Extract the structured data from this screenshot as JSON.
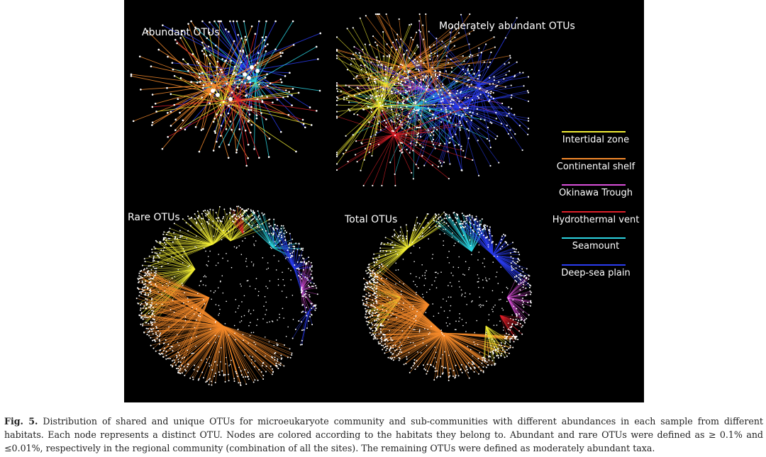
{
  "figure": {
    "panels": [
      {
        "id": "abundant",
        "title": "Abundant OTUs"
      },
      {
        "id": "moderate",
        "title": "Moderately abundant OTUs"
      },
      {
        "id": "rare",
        "title": "Rare OTUs"
      },
      {
        "id": "total",
        "title": "Total OTUs"
      }
    ],
    "legend": [
      {
        "label": "Intertidal zone",
        "color": "#f2ee35"
      },
      {
        "label": "Continental shelf",
        "color": "#f58a2b"
      },
      {
        "label": "Okinawa Trough",
        "color": "#d94fd9"
      },
      {
        "label": "Hydrothermal vent",
        "color": "#e0202a"
      },
      {
        "label": "Seamount",
        "color": "#2cd3e0"
      },
      {
        "label": "Deep-sea plain",
        "color": "#2a3cf0"
      }
    ]
  },
  "caption": {
    "label": "Fig. 5.",
    "text": " Distribution of shared and unique OTUs for microeukaryote community and sub-communities with different abundances in each sample from different habitats. Each node represents a distinct OTU. Nodes are colored according to the habitats they belong to. Abundant and rare OTUs were defined as ≥ 0.1% and ≤0.01%, respectively in the regional community (combination of all the sites). The remaining OTUs were defined as moderately abundant taxa."
  }
}
